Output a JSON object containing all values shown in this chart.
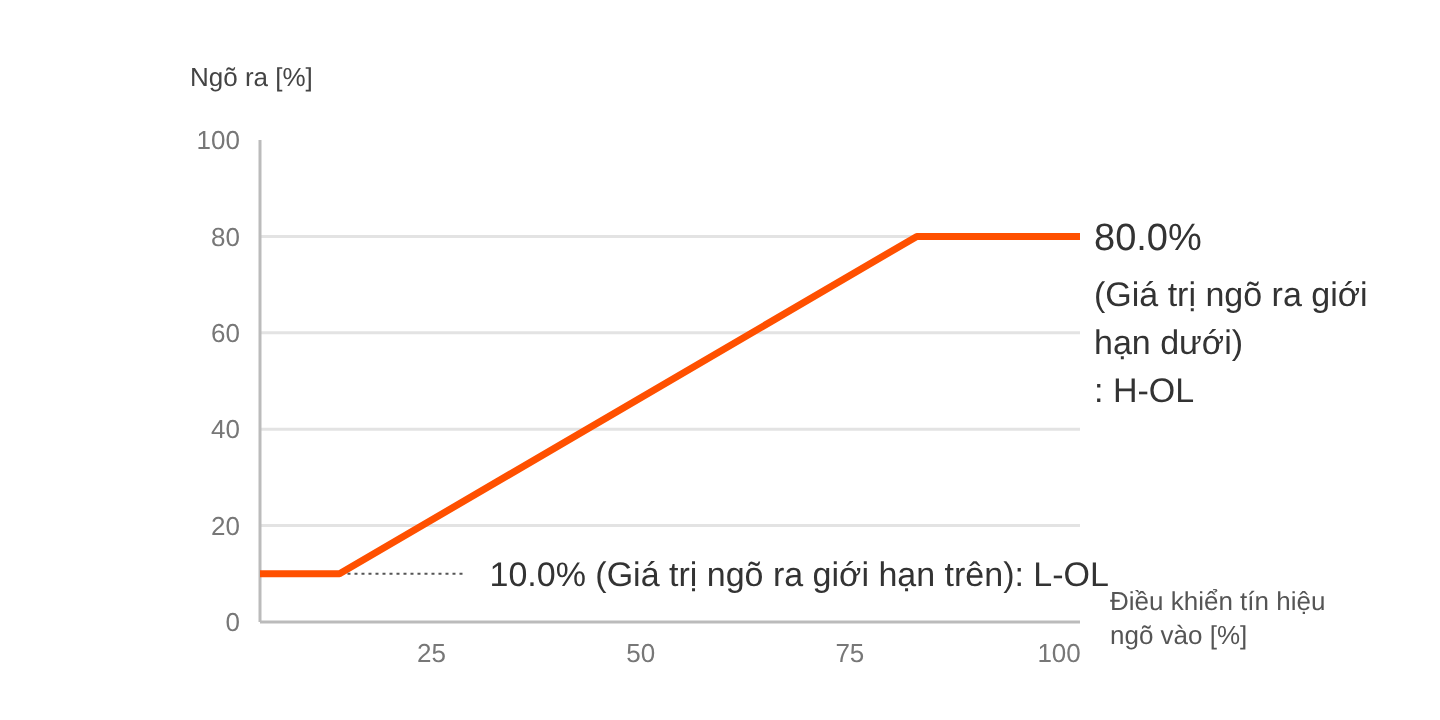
{
  "chart_data": {
    "type": "line",
    "xlabel": "Điều khiển tín hiệu\nngõ vào [%]",
    "ylabel": "Ngõ ra [%]",
    "xlim": [
      4.5,
      102.5
    ],
    "xticks": [
      25,
      50,
      75,
      100
    ],
    "ylim": [
      0,
      100
    ],
    "yticks": [
      0,
      20,
      40,
      60,
      80,
      100
    ],
    "grid": "y",
    "marker": "none",
    "line_style": "solid",
    "series": [
      {
        "color": "#ff5000",
        "x": [
          4.5,
          14,
          83,
          102.5
        ],
        "values": [
          10,
          10,
          80,
          80
        ]
      }
    ],
    "annotations": [
      {
        "text": "80.0%\n(Giá trị ngõ ra giới\nhạn dưới)\n: H-OL",
        "x": 102.5,
        "y": 80
      },
      {
        "text": "10.0% (Giá trị ngõ ra giới hạn trên): L-OL",
        "x": 14,
        "y": 10
      }
    ]
  }
}
